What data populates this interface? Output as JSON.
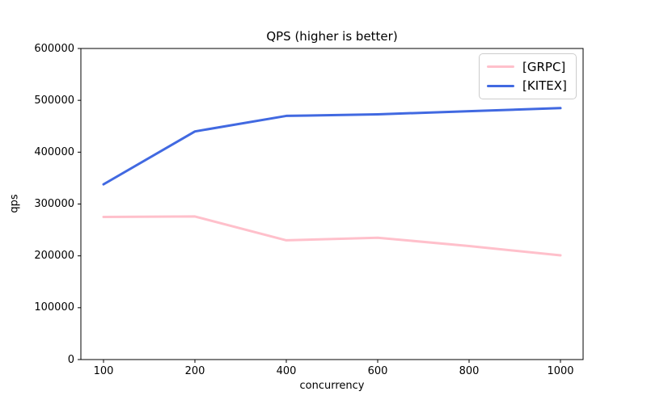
{
  "chart_data": {
    "type": "line",
    "title": "QPS (higher is better)",
    "xlabel": "concurrency",
    "ylabel": "qps",
    "categories": [
      100,
      200,
      400,
      600,
      800,
      1000
    ],
    "series": [
      {
        "name": "[GRPC]",
        "color": "#ffc0cb",
        "values": [
          275000,
          276000,
          230000,
          235000,
          219000,
          201000
        ]
      },
      {
        "name": "[KITEX]",
        "color": "#4169e1",
        "values": [
          338000,
          440000,
          470000,
          473000,
          479000,
          485000
        ]
      }
    ],
    "ylim": [
      0,
      600000
    ],
    "yticks": [
      0,
      100000,
      200000,
      300000,
      400000,
      500000,
      600000
    ],
    "grid": false,
    "legend_position": "upper right",
    "axis_color": "#000000",
    "background_color": "#ffffff"
  }
}
